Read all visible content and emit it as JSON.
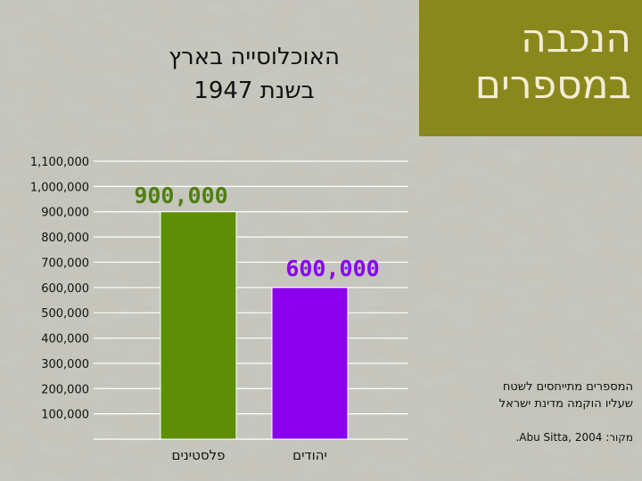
{
  "header": {
    "title_line1": "הנכבה",
    "title_line2": "במספרים",
    "subtitle_line1": "האוכלוסייה בארץ",
    "subtitle_line2": "בשנת 1947"
  },
  "notes": {
    "line1": "המספרים מתייחסים לשטח",
    "line2": "שעליו הוקמה מדינת ישראל",
    "source": "מקור: Abu Sitta, 2004."
  },
  "colors": {
    "title_panel": "#8a871c",
    "bar_palestinians": "#5c8f06",
    "bar_jews": "#8a00ee",
    "label_palestinians": "#4e7f0f",
    "label_jews": "#8a00ee"
  },
  "chart_data": {
    "type": "bar",
    "categories": [
      "פלסטינים",
      "יהודים"
    ],
    "values": [
      900000,
      600000
    ],
    "value_labels": [
      "900,000",
      "600,000"
    ],
    "ylim": [
      0,
      1100000
    ],
    "y_ticks": [
      100000,
      200000,
      300000,
      400000,
      500000,
      600000,
      700000,
      800000,
      900000,
      1000000,
      1100000
    ],
    "y_tick_labels": [
      "100,000",
      "200,000",
      "300,000",
      "400,000",
      "500,000",
      "600,000",
      "700,000",
      "800,000",
      "900,000",
      "1,000,000",
      "1,100,000"
    ],
    "grid": true
  }
}
